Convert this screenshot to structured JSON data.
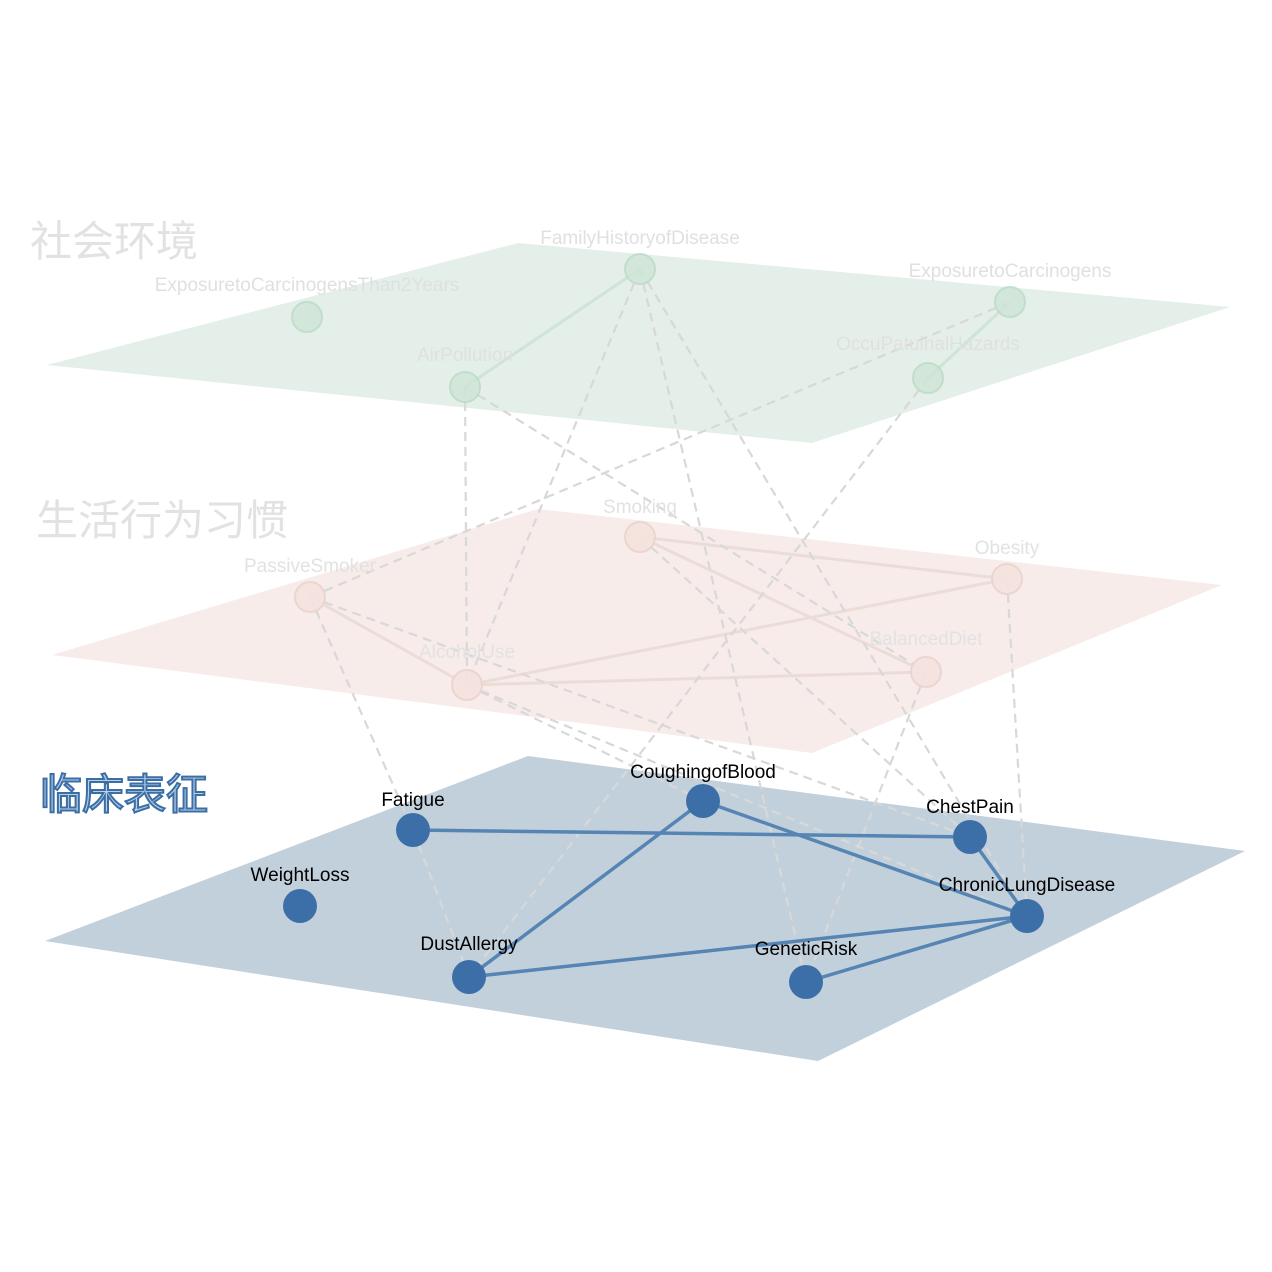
{
  "colors": {
    "social_plane": "#e4efe9",
    "social_node": "#cfe6d7",
    "social_node_stroke": "#bcdcc6",
    "social_edge": "#cde4d6",
    "social_text": "#e0e0e0",
    "behavior_plane": "#f7ece9",
    "behavior_node": "#f5e3df",
    "behavior_node_stroke": "#ecd3cd",
    "behavior_edge": "#ecdcd8",
    "behavior_text": "#e2e2e2",
    "clinical_plane": "#c2d0dc",
    "clinical_node": "#3c6fa8",
    "clinical_edge": "#5684b3",
    "clinical_text": "#000000",
    "clinical_title_fill": "#b9cfe6",
    "clinical_title_stroke": "#3b6ea5",
    "cross_edge": "#d8d8d8"
  },
  "layers": {
    "social": {
      "title": "社会环境",
      "nodes": {
        "family_history": "FamilyHistoryofDisease",
        "exposure_2years": "ExposuretoCarcinogensThan2Years",
        "exposure": "ExposuretoCarcinogens",
        "air_pollution": "AirPollution",
        "occupational": "OccuPatuinalHazards"
      }
    },
    "behavior": {
      "title": "生活行为习惯",
      "nodes": {
        "smoking": "Smoking",
        "obesity": "Obesity",
        "passive_smoker": "PassiveSmoker",
        "alcohol_use": "AlcoholUse",
        "balanced_diet": "BalancedDiet"
      }
    },
    "clinical": {
      "title": "临床表征",
      "nodes": {
        "coughing_blood": "CoughingofBlood",
        "fatigue": "Fatigue",
        "chest_pain": "ChestPain",
        "weight_loss": "WeightLoss",
        "chronic_lung": "ChronicLungDisease",
        "dust_allergy": "DustAllergy",
        "genetic_risk": "GeneticRisk"
      }
    }
  }
}
